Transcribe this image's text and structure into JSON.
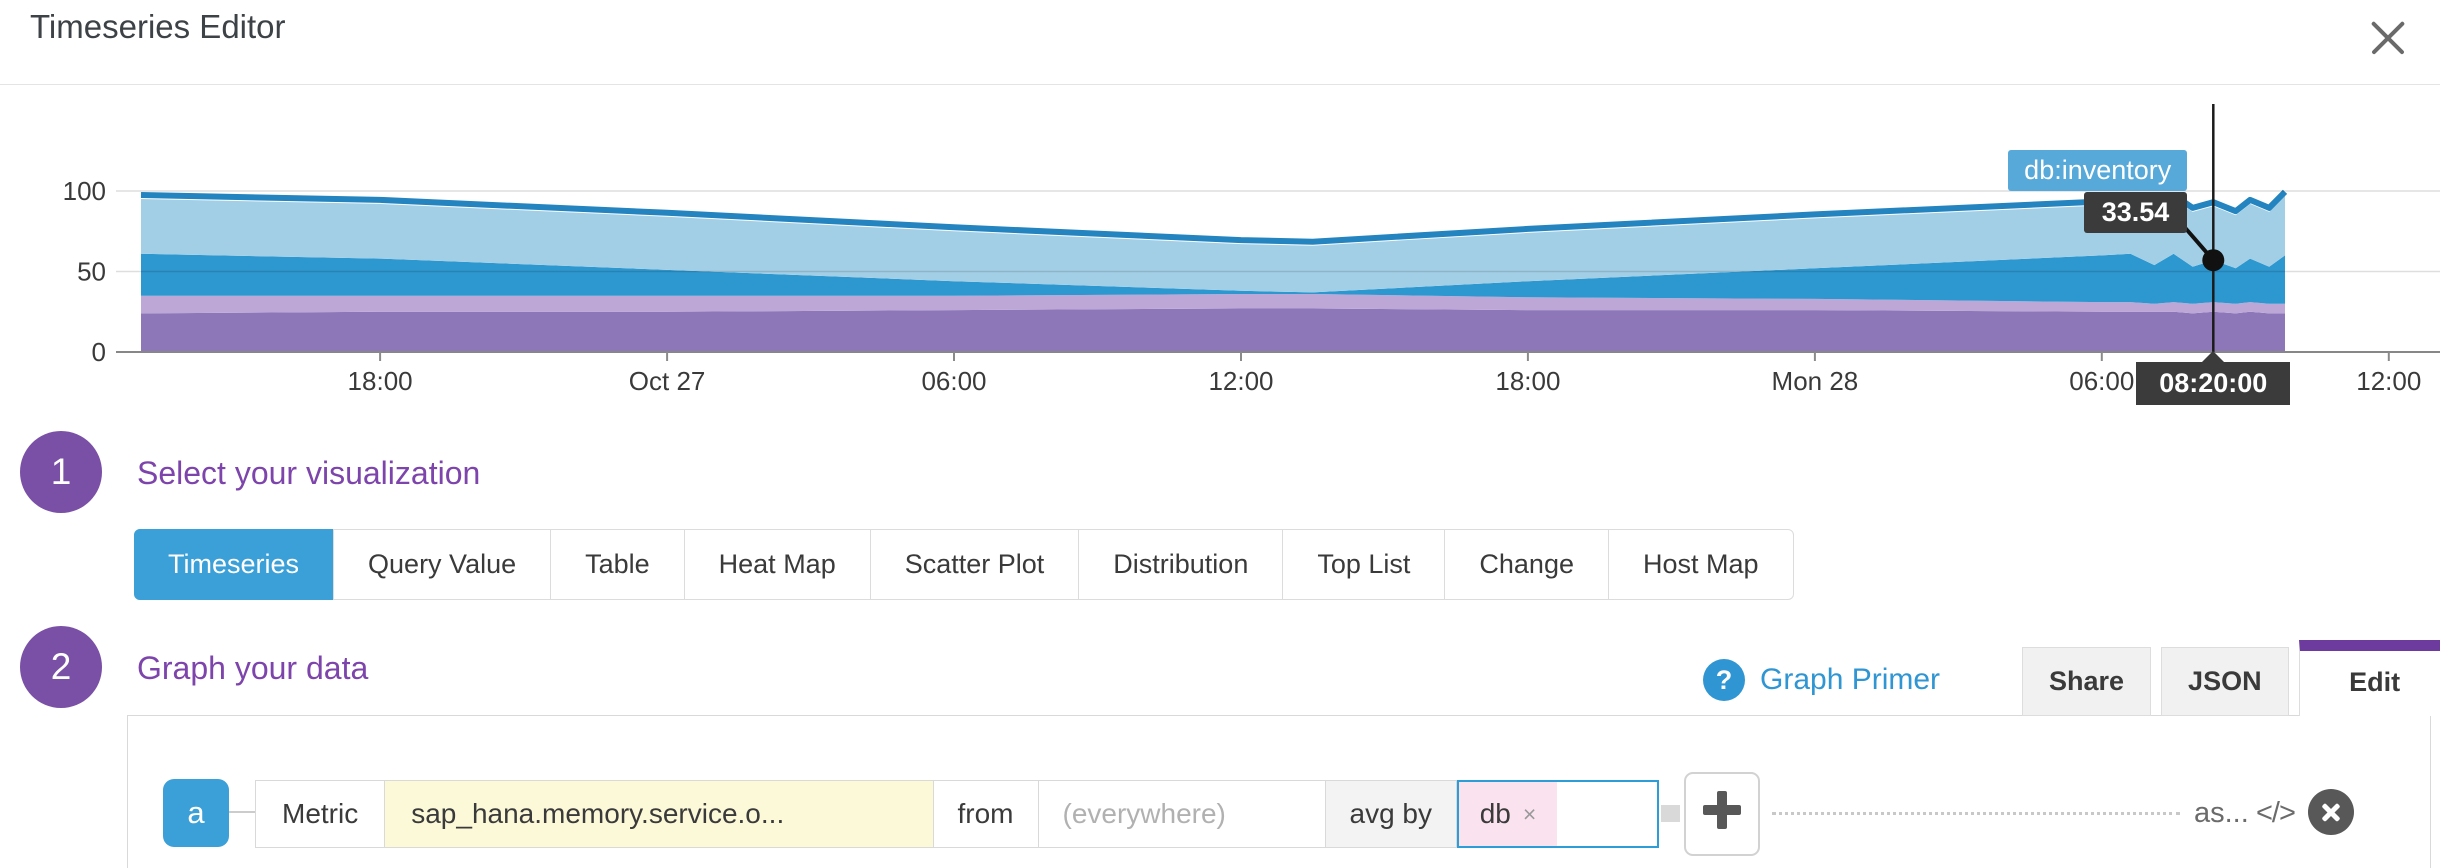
{
  "header": {
    "title": "Timeseries Editor"
  },
  "chart_data": {
    "type": "area",
    "stacked": true,
    "title": "",
    "grid": true,
    "x_axis": {
      "unit": "time",
      "tick_labels": [
        "18:00",
        "Oct 27",
        "06:00",
        "12:00",
        "18:00",
        "Mon 28",
        "06:00",
        "12:00"
      ],
      "tick_hours": [
        5,
        11,
        17,
        23,
        29,
        35,
        41,
        47
      ],
      "total_hours": 44.83
    },
    "y_axis": {
      "ticks": [
        0,
        50,
        100
      ],
      "lim": [
        0,
        110
      ]
    },
    "sample_hours": [
      0,
      5,
      11,
      17,
      23,
      24.5,
      29,
      35,
      41,
      41.6,
      42.1,
      42.5,
      42.9,
      43.33,
      43.8,
      44.1,
      44.5,
      44.83
    ],
    "series": [
      {
        "name": "",
        "color": "#8d77b8",
        "values": [
          24,
          25,
          25,
          26,
          27,
          27,
          26,
          26,
          25,
          25,
          25,
          25,
          24,
          25,
          24,
          25,
          24,
          24
        ]
      },
      {
        "name": "",
        "color": "#bda7d7",
        "values": [
          11,
          10,
          10,
          9,
          9,
          9,
          8,
          7,
          6,
          6,
          5,
          6,
          6,
          6,
          6,
          6,
          6,
          6
        ]
      },
      {
        "name": "",
        "color": "#2d97cf",
        "values": [
          26,
          23,
          16,
          9,
          2,
          1,
          10,
          19,
          29,
          30,
          24,
          30,
          23,
          26,
          22,
          27,
          23,
          30
        ]
      },
      {
        "name": "db:inventory",
        "color": "#a3cfe6",
        "values": [
          34,
          34,
          33,
          31,
          29,
          29,
          30,
          31,
          31,
          33,
          33,
          34,
          34,
          33.54,
          33,
          34,
          34,
          37
        ]
      }
    ],
    "total_line_color": "#2384bf",
    "crosshair": {
      "hour": 43.33,
      "time_label": "08:20:00",
      "series_label": "db:inventory",
      "value_label": "33.54",
      "dot_stack_value": 57
    }
  },
  "step1": {
    "number": "1",
    "title": "Select your visualization"
  },
  "visualization": {
    "tabs": [
      {
        "label": "Timeseries",
        "active": true
      },
      {
        "label": "Query Value",
        "active": false
      },
      {
        "label": "Table",
        "active": false
      },
      {
        "label": "Heat Map",
        "active": false
      },
      {
        "label": "Scatter Plot",
        "active": false
      },
      {
        "label": "Distribution",
        "active": false
      },
      {
        "label": "Top List",
        "active": false
      },
      {
        "label": "Change",
        "active": false
      },
      {
        "label": "Host Map",
        "active": false
      }
    ],
    "active_color": "#3b9fd8"
  },
  "step2": {
    "number": "2",
    "title": "Graph your data"
  },
  "graph_section": {
    "primer": {
      "help_glyph": "?",
      "label": "Graph Primer"
    },
    "tabs": [
      {
        "label": "Share",
        "active": false
      },
      {
        "label": "JSON",
        "active": false
      },
      {
        "label": "Edit",
        "active": true
      }
    ],
    "active_tab_bar_color": "#6d3a9e"
  },
  "query": {
    "letter": "a",
    "metric_label": "Metric",
    "metric_value": "sap_hana.memory.service.o...",
    "from_label": "from",
    "from_placeholder": "(everywhere)",
    "avg_by_label": "avg by",
    "tag": {
      "text": "db",
      "remove_glyph": "×"
    },
    "as_label": "as...",
    "code_glyph": "</>",
    "metric_highlight_color": "#fcf9d9",
    "tag_pill_color": "#fbe2ef"
  },
  "colors": {
    "accent_blue": "#3b9fd8",
    "step_purple": "#7a4fa6",
    "heading_purple": "#7d44ab",
    "tooltip_dark": "#3b3b3b",
    "tooltip_pill_blue": "#57a9da"
  }
}
